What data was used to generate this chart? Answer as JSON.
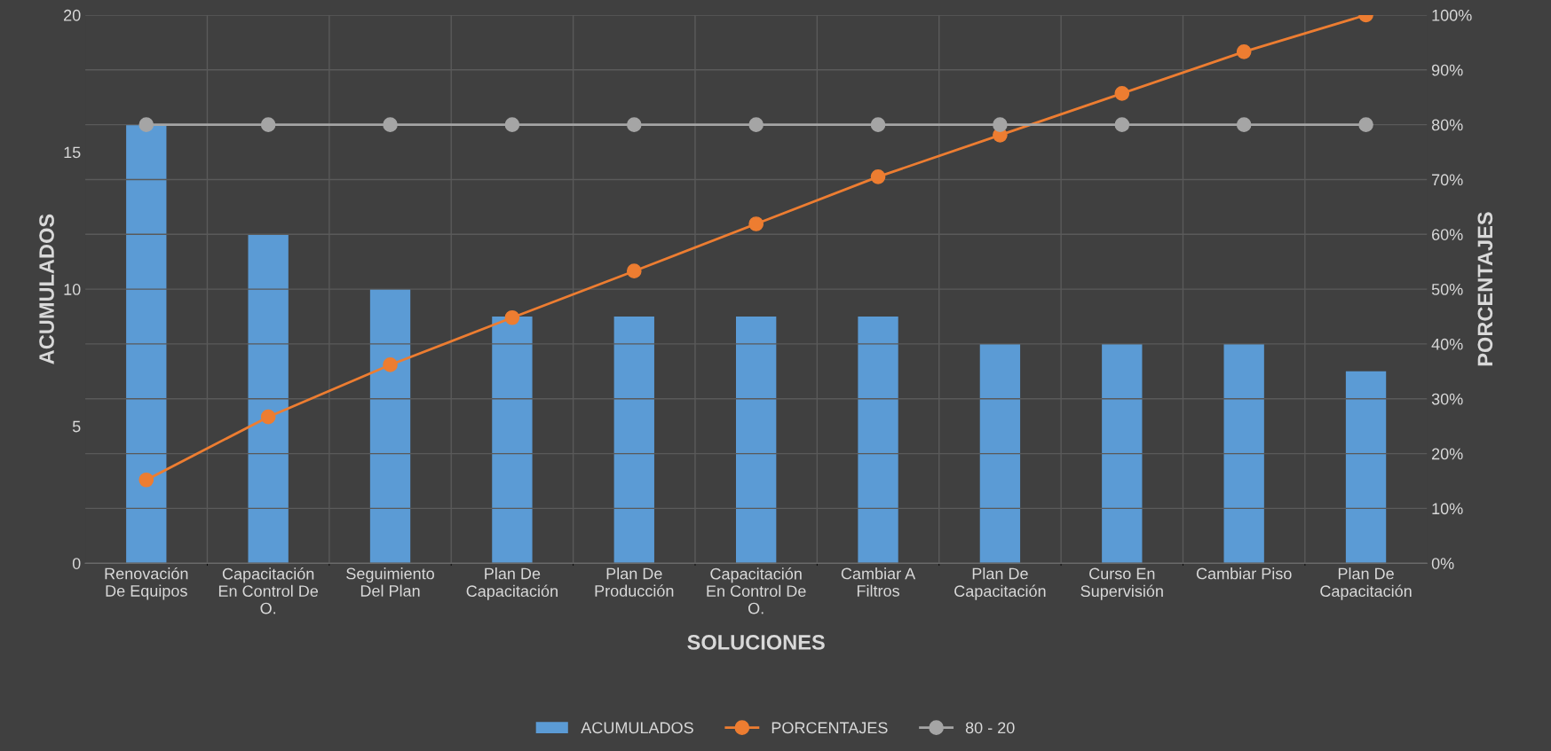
{
  "chart_data": {
    "type": "bar",
    "xlabel": "SOLUCIONES",
    "ylabel": "ACUMULADOS",
    "y2label": "PORCENTAJES",
    "categories": [
      "Renovación\nDe Equipos",
      "Capacitación\nEn Control De\nO.",
      "Seguimiento\nDel Plan",
      "Plan De\nCapacitación",
      "Plan De\nProducción",
      "Capacitación\nEn Control De\nO.",
      "Cambiar A\nFiltros",
      "Plan De\nCapacitación",
      "Curso En\nSupervisión",
      "Cambiar Piso",
      "Plan De\nCapacitación"
    ],
    "series": [
      {
        "name": "ACUMULADOS",
        "color": "#5b9bd5",
        "values": [
          16,
          12,
          10,
          9,
          9,
          9,
          9,
          8,
          8,
          8,
          7
        ]
      },
      {
        "name": "PORCENTAJES",
        "type": "line",
        "axis": "y2",
        "color": "#ed7d31",
        "values": [
          15.2,
          26.7,
          36.2,
          44.8,
          53.3,
          61.9,
          70.5,
          78.1,
          85.7,
          93.3,
          100
        ]
      },
      {
        "name": "80 - 20",
        "type": "line",
        "axis": "y2",
        "color": "#a5a5a5",
        "values": [
          80,
          80,
          80,
          80,
          80,
          80,
          80,
          80,
          80,
          80,
          80
        ]
      }
    ],
    "ylim": [
      0,
      20
    ],
    "yticks": [
      0,
      5,
      10,
      15,
      20
    ],
    "y2lim": [
      0,
      100
    ],
    "y2ticks": [
      {
        "value": 0,
        "label": "0%"
      },
      {
        "value": 10,
        "label": "10%"
      },
      {
        "value": 20,
        "label": "20%"
      },
      {
        "value": 30,
        "label": "30%"
      },
      {
        "value": 40,
        "label": "40%"
      },
      {
        "value": 50,
        "label": "50%"
      },
      {
        "value": 60,
        "label": "60%"
      },
      {
        "value": 70,
        "label": "70%"
      },
      {
        "value": 80,
        "label": "80%"
      },
      {
        "value": 90,
        "label": "90%"
      },
      {
        "value": 100,
        "label": "100%"
      }
    ],
    "grid": true,
    "legend": "bottom",
    "marker": "circle"
  }
}
